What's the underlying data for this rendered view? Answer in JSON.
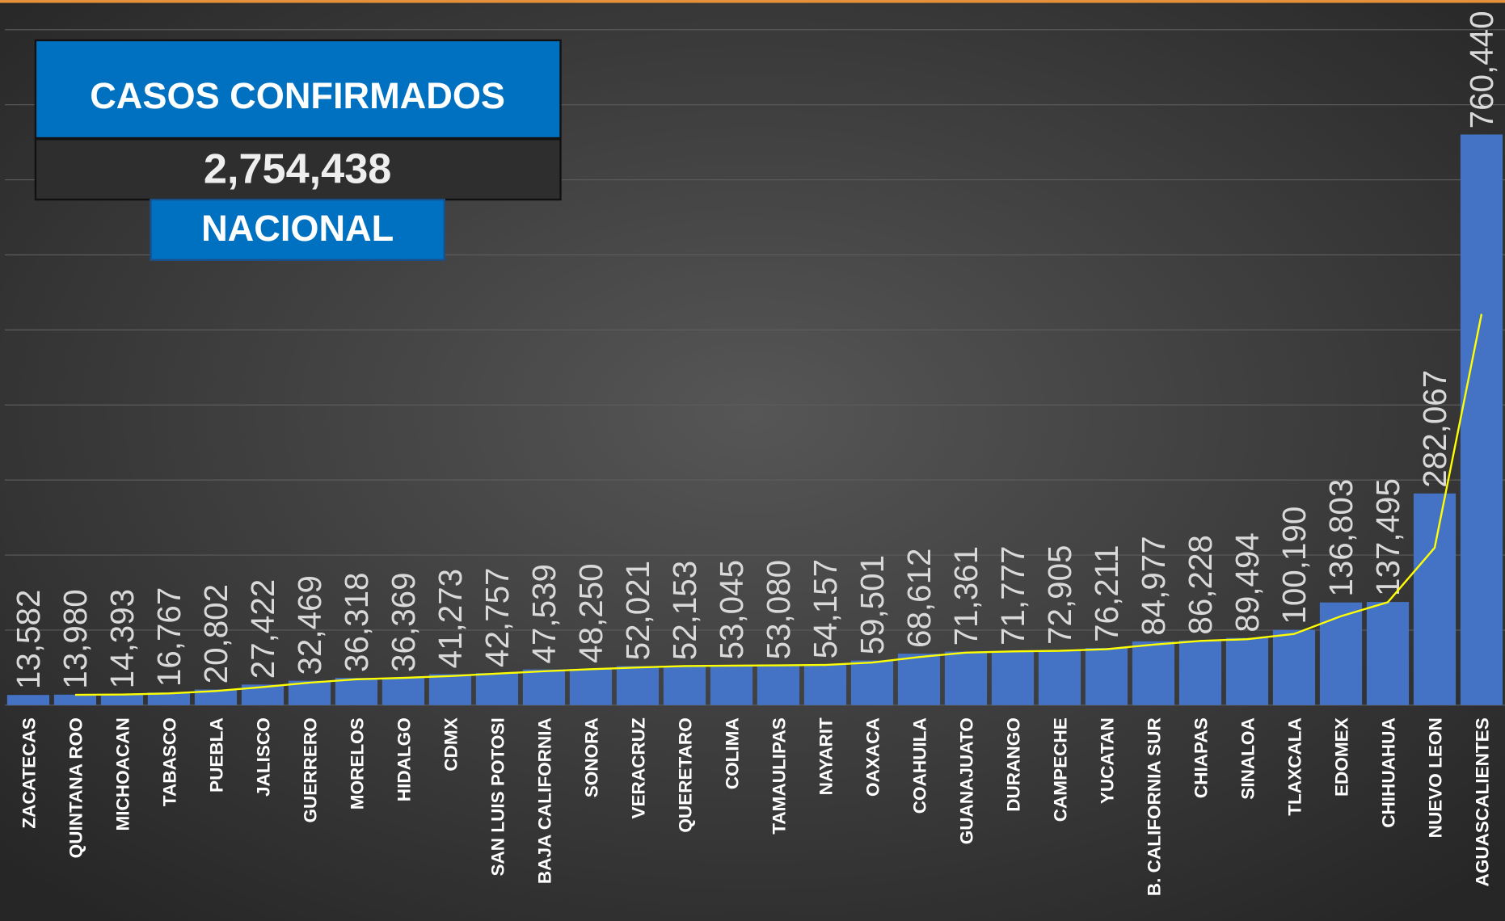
{
  "chart_data": {
    "type": "bar",
    "title": "CASOS CONFIRMADOS",
    "total": "2,754,438",
    "subtitle": "NACIONAL",
    "categories": [
      "ZACATECAS",
      "QUINTANA ROO",
      "MICHOACAN",
      "TABASCO",
      "PUEBLA",
      "JALISCO",
      "GUERRERO",
      "MORELOS",
      "HIDALGO",
      "CDMX",
      "SAN LUIS POTOSI",
      "BAJA CALIFORNIA",
      "SONORA",
      "VERACRUZ",
      "QUERETARO",
      "COLIMA",
      "TAMAULIPAS",
      "NAYARIT",
      "OAXACA",
      "COAHUILA",
      "GUANAJUATO",
      "DURANGO",
      "CAMPECHE",
      "YUCATAN",
      "B. CALIFORNIA SUR",
      "CHIAPAS",
      "SINALOA",
      "TLAXCALA",
      "EDOMEX",
      "CHIHUAHUA",
      "NUEVO LEON",
      "AGUASCALIENTES"
    ],
    "values": [
      13582,
      13980,
      14393,
      16767,
      20802,
      27422,
      32469,
      36318,
      36369,
      41273,
      42757,
      47539,
      48250,
      52021,
      52153,
      53045,
      53080,
      54157,
      59501,
      68612,
      71361,
      71777,
      72905,
      76211,
      84977,
      86228,
      89494,
      100190,
      136803,
      137495,
      282067,
      760440
    ],
    "value_labels": [
      "13,582",
      "13,980",
      "14,393",
      "16,767",
      "20,802",
      "27,422",
      "32,469",
      "36,318",
      "36,369",
      "41,273",
      "42,757",
      "47,539",
      "48,250",
      "52,021",
      "52,153",
      "53,045",
      "53,080",
      "54,157",
      "59,501",
      "68,612",
      "71,361",
      "71,777",
      "72,905",
      "76,211",
      "84,977",
      "86,228",
      "89,494",
      "100,190",
      "136,803",
      "137,495",
      "282,067",
      "760,440"
    ],
    "color": "#4472c4",
    "trend": {
      "color": "#ffff00",
      "values": [
        null,
        13781,
        14186.5,
        15580,
        18784.5,
        24112,
        29945.5,
        34393.5,
        36343.5,
        38821,
        42015,
        45148,
        47894.5,
        50135.5,
        52087,
        52599,
        53062.5,
        53618.5,
        56829,
        64056.5,
        69986.5,
        71569,
        72341,
        74558,
        80594,
        85602.5,
        87861,
        94842,
        118496.5,
        137149,
        209781,
        521253.5
      ]
    },
    "ylim": [
      0,
      900000
    ],
    "yticks": [
      0,
      100000,
      200000,
      300000,
      400000,
      500000,
      600000,
      700000,
      800000,
      900000
    ],
    "grid": true
  }
}
